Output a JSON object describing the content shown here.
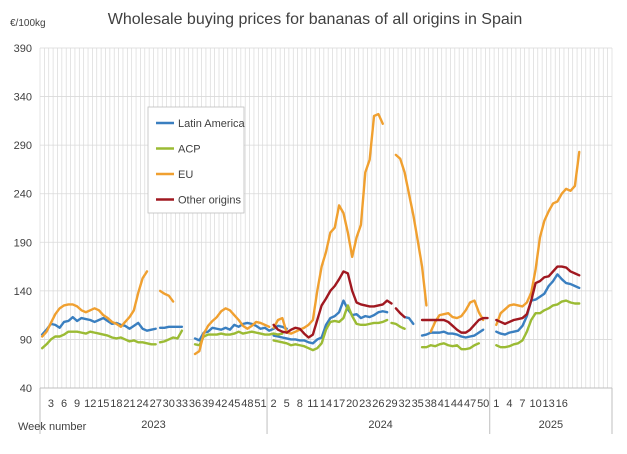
{
  "chart_data": {
    "type": "line",
    "title": "Wholesale buying prices for bananas of all origins in Spain",
    "ylabel": "€/100kg",
    "xlabel": "Week number",
    "ylim": [
      40,
      390
    ],
    "yticks": [
      "390",
      "340",
      "290",
      "240",
      "190",
      "140",
      "90",
      "40"
    ],
    "ytick_values": [
      390,
      340,
      290,
      240,
      190,
      140,
      90,
      40
    ],
    "grid": true,
    "legend_position": "upper-left inside plot",
    "x_slot_count": 131,
    "xtick_labels": [
      {
        "slot": 2,
        "label": "3"
      },
      {
        "slot": 5,
        "label": "6"
      },
      {
        "slot": 8,
        "label": "9"
      },
      {
        "slot": 11,
        "label": "12"
      },
      {
        "slot": 14,
        "label": "15"
      },
      {
        "slot": 17,
        "label": "18"
      },
      {
        "slot": 20,
        "label": "21"
      },
      {
        "slot": 23,
        "label": "24"
      },
      {
        "slot": 26,
        "label": "27"
      },
      {
        "slot": 29,
        "label": "30"
      },
      {
        "slot": 32,
        "label": "33"
      },
      {
        "slot": 35,
        "label": "36"
      },
      {
        "slot": 38,
        "label": "39"
      },
      {
        "slot": 41,
        "label": "42"
      },
      {
        "slot": 44,
        "label": "45"
      },
      {
        "slot": 47,
        "label": "48"
      },
      {
        "slot": 50,
        "label": "51"
      },
      {
        "slot": 53,
        "label": "2"
      },
      {
        "slot": 56,
        "label": "5"
      },
      {
        "slot": 59,
        "label": "8"
      },
      {
        "slot": 62,
        "label": "11"
      },
      {
        "slot": 65,
        "label": "14"
      },
      {
        "slot": 68,
        "label": "17"
      },
      {
        "slot": 71,
        "label": "20"
      },
      {
        "slot": 74,
        "label": "23"
      },
      {
        "slot": 77,
        "label": "26"
      },
      {
        "slot": 80,
        "label": "29"
      },
      {
        "slot": 83,
        "label": "32"
      },
      {
        "slot": 86,
        "label": "35"
      },
      {
        "slot": 89,
        "label": "38"
      },
      {
        "slot": 92,
        "label": "41"
      },
      {
        "slot": 95,
        "label": "44"
      },
      {
        "slot": 98,
        "label": "47"
      },
      {
        "slot": 101,
        "label": "50"
      },
      {
        "slot": 104,
        "label": "1"
      },
      {
        "slot": 107,
        "label": "4"
      },
      {
        "slot": 110,
        "label": "7"
      },
      {
        "slot": 113,
        "label": "10"
      },
      {
        "slot": 116,
        "label": "13"
      },
      {
        "slot": 119,
        "label": "16"
      }
    ],
    "year_groups": [
      {
        "label": "2023",
        "start_slot": 0,
        "end_slot": 51
      },
      {
        "label": "2024",
        "start_slot": 52,
        "end_slot": 103
      },
      {
        "label": "2025",
        "start_slot": 103,
        "end_slot": 130
      }
    ],
    "series": [
      {
        "name": "Latin America",
        "color": "#3a7fc0",
        "segments": [
          {
            "start": 0,
            "values": [
              95,
              100,
              106,
              105,
              102,
              108,
              109,
              113,
              109,
              112,
              111,
              110,
              108,
              110,
              112,
              109,
              106,
              107,
              105,
              104,
              101,
              104,
              107,
              101,
              99,
              100,
              101
            ]
          },
          {
            "start": 27,
            "values": [
              102,
              102,
              103,
              103,
              103,
              103
            ]
          },
          {
            "start": 35,
            "values": [
              91,
              89,
              97,
              98,
              102,
              101,
              100,
              102,
              100,
              105,
              103,
              106,
              107,
              106,
              104,
              101,
              102,
              99,
              101,
              104,
              103,
              101
            ]
          },
          {
            "start": 53,
            "values": [
              94,
              93,
              92,
              91,
              90,
              90,
              89,
              89,
              87,
              86,
              90,
              92,
              105,
              112,
              114,
              118,
              130,
              121,
              115,
              116,
              112,
              114,
              113,
              115,
              118,
              119,
              118
            ]
          },
          {
            "start": 83,
            "values": [
              113,
              112,
              106
            ]
          },
          {
            "start": 87,
            "values": [
              94,
              95,
              97,
              97,
              97,
              98,
              96,
              96,
              95,
              93,
              92,
              93,
              94,
              97,
              100
            ]
          },
          {
            "start": 104,
            "values": [
              98,
              96,
              95,
              97,
              98,
              99,
              104,
              114,
              130,
              131,
              134,
              137,
              145,
              150,
              157,
              152,
              148,
              147,
              145,
              143
            ]
          }
        ]
      },
      {
        "name": "ACP",
        "color": "#9bbb34",
        "segments": [
          {
            "start": 0,
            "values": [
              81,
              85,
              90,
              93,
              93,
              95,
              98,
              98,
              98,
              97,
              96,
              98,
              97,
              96,
              95,
              94,
              92,
              91,
              92,
              90,
              88,
              89,
              87,
              87,
              86,
              85,
              85
            ]
          },
          {
            "start": 27,
            "values": [
              87,
              88,
              90,
              92,
              91,
              99
            ]
          },
          {
            "start": 35,
            "values": [
              85,
              84,
              93,
              95,
              95,
              95,
              96,
              95,
              95,
              96,
              98,
              96,
              97,
              98,
              97,
              96,
              95,
              95,
              96,
              95,
              96
            ]
          },
          {
            "start": 53,
            "values": [
              89,
              88,
              87,
              86,
              84,
              85,
              84,
              83,
              81,
              79,
              81,
              86,
              100,
              108,
              109,
              108,
              112,
              125,
              114,
              106,
              105,
              105,
              106,
              107,
              107,
              108,
              110
            ]
          },
          {
            "start": 80,
            "values": [
              107,
              106,
              103,
              101
            ]
          },
          {
            "start": 87,
            "values": [
              82,
              82,
              84,
              83,
              85,
              86,
              84,
              83,
              84,
              80,
              80,
              81,
              84,
              86
            ]
          },
          {
            "start": 104,
            "values": [
              84,
              82,
              82,
              83,
              85,
              86,
              89,
              98,
              110,
              117,
              117,
              120,
              122,
              125,
              126,
              129,
              130,
              128,
              127,
              127
            ]
          }
        ]
      },
      {
        "name": "EU",
        "color": "#f0a030",
        "segments": [
          {
            "start": 0,
            "values": [
              93,
              98,
              107,
              116,
              122,
              125,
              126,
              126,
              124,
              120,
              118,
              120,
              122,
              120,
              115,
              112,
              108,
              106,
              103,
              108,
              113,
              120,
              138,
              153,
              160
            ]
          },
          {
            "start": 27,
            "values": [
              140,
              137,
              135,
              129
            ]
          },
          {
            "start": 35,
            "values": [
              75,
              78,
              96,
              104,
              109,
              113,
              119,
              122,
              120,
              115,
              110,
              104,
              101,
              104,
              108,
              107,
              105,
              103
            ]
          },
          {
            "start": 53,
            "values": [
              102,
              110,
              112,
              97,
              96,
              98,
              100,
              102,
              105,
              110,
              140,
              165,
              180,
              200,
              205,
              228,
              220,
              200,
              175,
              195,
              208,
              262,
              275,
              320,
              322,
              312
            ]
          },
          {
            "start": 81,
            "values": [
              280,
              276,
              262,
              240,
              218,
              192,
              165,
              125
            ]
          },
          {
            "start": 89,
            "values": [
              98,
              108,
              115,
              116,
              117,
              113,
              112,
              114,
              120,
              128,
              130,
              118,
              110
            ]
          },
          {
            "start": 104,
            "values": [
              105,
              117,
              121,
              125,
              126,
              125,
              124,
              128,
              138,
              162,
              195,
              212,
              222,
              230,
              232,
              240,
              245,
              243,
              248,
              283
            ]
          }
        ]
      },
      {
        "name": "Other origins",
        "color": "#a01820",
        "segments": [
          {
            "start": 53,
            "values": [
              105,
              100,
              98,
              97,
              100,
              102,
              101,
              96,
              92,
              95,
              110,
              125,
              132,
              140,
              145,
              152,
              160,
              158,
              140,
              128,
              126,
              125,
              124,
              124,
              125,
              126,
              130,
              127
            ]
          },
          {
            "start": 81,
            "values": [
              122,
              117,
              113
            ]
          },
          {
            "start": 87,
            "values": [
              110,
              110,
              110,
              110,
              110,
              110,
              108,
              104,
              100,
              97,
              97,
              100,
              105,
              110,
              112,
              112
            ]
          },
          {
            "start": 104,
            "values": [
              110,
              108,
              106,
              108,
              110,
              111,
              112,
              116,
              130,
              148,
              150,
              154,
              155,
              160,
              165,
              165,
              164,
              160,
              158,
              156
            ]
          }
        ]
      }
    ]
  }
}
